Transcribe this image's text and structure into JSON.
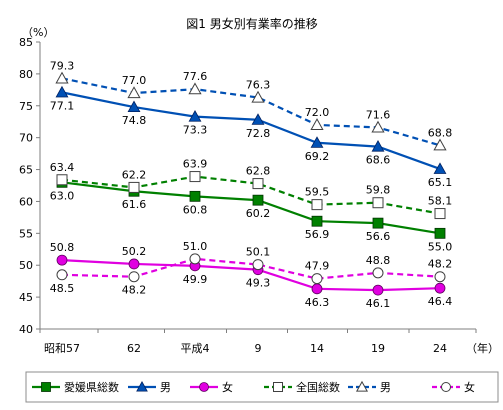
{
  "chart_data": {
    "type": "line",
    "title": "図1 男女別有業率の推移",
    "ylabel": "（%）",
    "xlabel": "（年）",
    "categories": [
      "昭和57",
      "62",
      "平成4",
      "9",
      "14",
      "19",
      "24"
    ],
    "yticks": [
      40,
      45,
      50,
      55,
      60,
      65,
      70,
      75,
      80,
      85
    ],
    "ylim": [
      40,
      85
    ],
    "grid": false,
    "legend_position": "bottom",
    "series": [
      {
        "name": "愛媛県総数",
        "values": [
          63.0,
          61.6,
          60.8,
          60.2,
          56.9,
          56.6,
          55.0
        ],
        "color": "#008000",
        "dash": "solid",
        "marker": "square",
        "filled": true,
        "label_pos": "below"
      },
      {
        "name": "男",
        "values": [
          77.1,
          74.8,
          73.3,
          72.8,
          69.2,
          68.6,
          65.1
        ],
        "color": "#0050B4",
        "dash": "solid",
        "marker": "triangle",
        "filled": true,
        "label_pos": "below"
      },
      {
        "name": "女",
        "values": [
          50.8,
          50.2,
          49.9,
          49.3,
          46.3,
          46.1,
          46.4
        ],
        "color": "#E000E0",
        "dash": "solid",
        "marker": "circle",
        "filled": true,
        "label_pos": "mixed"
      },
      {
        "name": "全国総数",
        "values": [
          63.4,
          62.2,
          63.9,
          62.8,
          59.5,
          59.8,
          58.1
        ],
        "color": "#008000",
        "dash": "dashed",
        "marker": "square",
        "filled": false,
        "label_pos": "above"
      },
      {
        "name": "男",
        "values": [
          79.3,
          77.0,
          77.6,
          76.3,
          72.0,
          71.6,
          68.8
        ],
        "color": "#0050B4",
        "dash": "dashed",
        "marker": "triangle",
        "filled": false,
        "label_pos": "above"
      },
      {
        "name": "女",
        "values": [
          48.5,
          48.2,
          51.0,
          50.1,
          47.9,
          48.8,
          48.2
        ],
        "color": "#E000E0",
        "dash": "dashed",
        "marker": "circle",
        "filled": false,
        "label_pos": "mixed"
      }
    ]
  }
}
